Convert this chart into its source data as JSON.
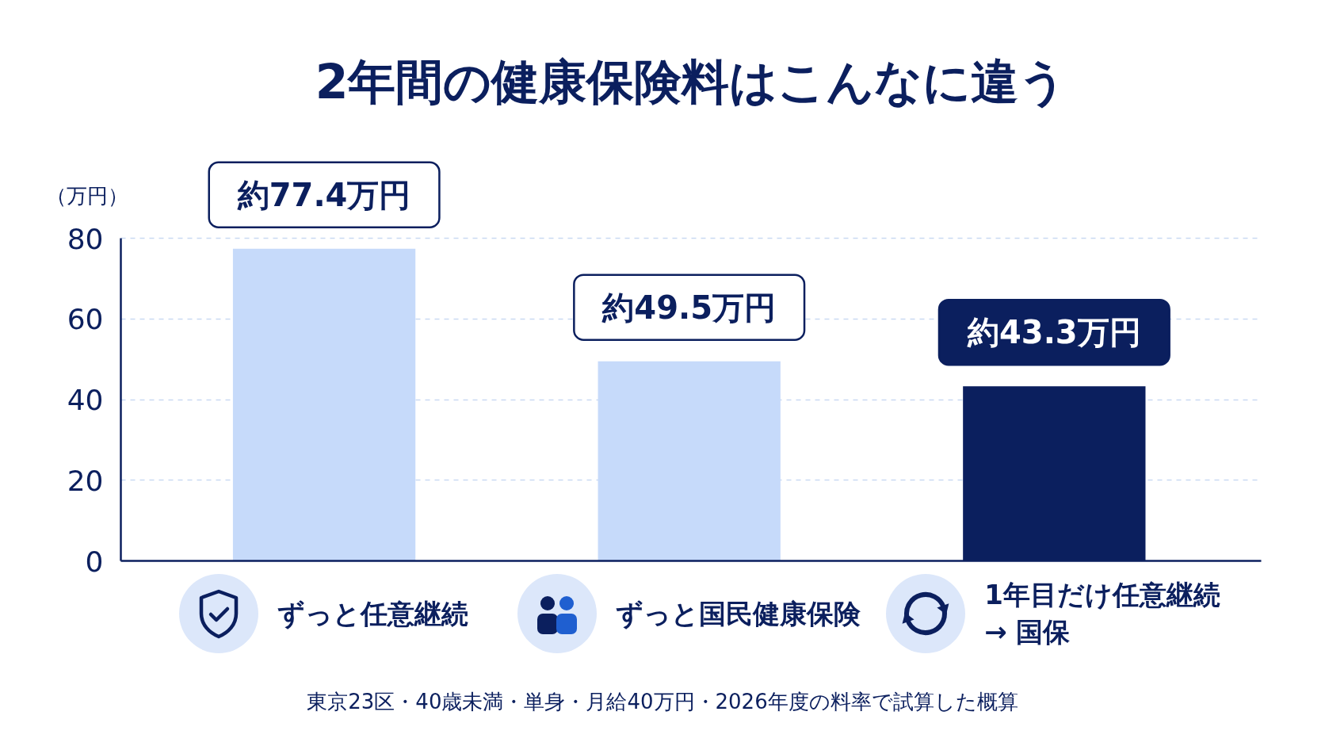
{
  "chart_data": {
    "type": "bar",
    "title": "2年間の健康保険料はこんなに違う",
    "ylabel": "（万円）",
    "categories": [
      "ずっと任意継続",
      "ずっと国民健康保険",
      "1年目だけ任意継続\n→ 国保"
    ],
    "values": [
      77.4,
      49.5,
      43.3
    ],
    "colors": [
      "#c6dafa",
      "#c6dafa",
      "#0b1f5e"
    ],
    "value_labels": [
      "約77.4万円",
      "約49.5万円",
      "約43.3万円"
    ],
    "ylim": [
      0,
      80
    ],
    "yticks": [
      0,
      20,
      40,
      60,
      80
    ],
    "grid": "y",
    "annotations": [
      "東京23区・40歳未満・単身・月給40万円・2026年度の料率で試算した概算"
    ]
  }
}
